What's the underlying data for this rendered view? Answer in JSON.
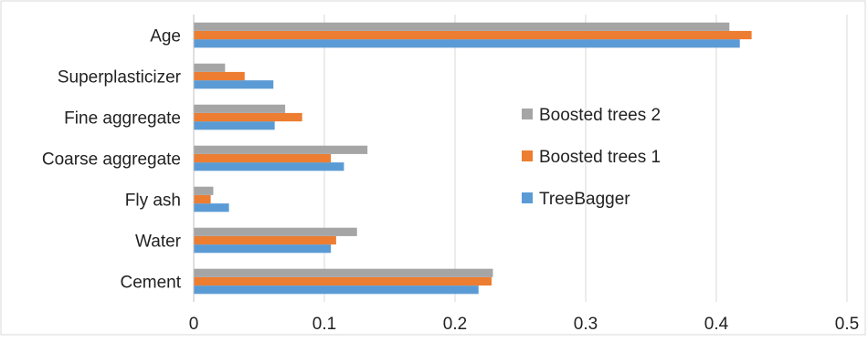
{
  "chart_data": {
    "type": "bar",
    "orientation": "horizontal",
    "categories": [
      "Cement",
      "Water",
      "Fly ash",
      "Coarse aggregate",
      "Fine aggregate",
      "Superplasticizer",
      "Age"
    ],
    "series": [
      {
        "name": "TreeBagger",
        "color": "#5b9bd5",
        "values": [
          0.218,
          0.105,
          0.027,
          0.115,
          0.062,
          0.061,
          0.418
        ]
      },
      {
        "name": "Boosted trees 1",
        "color": "#ed7d31",
        "values": [
          0.228,
          0.109,
          0.013,
          0.105,
          0.083,
          0.039,
          0.427
        ]
      },
      {
        "name": "Boosted trees 2",
        "color": "#a5a5a5",
        "values": [
          0.229,
          0.125,
          0.015,
          0.133,
          0.07,
          0.024,
          0.41
        ]
      }
    ],
    "xlim": [
      0,
      0.5
    ],
    "xticks": [
      "0",
      "0.1",
      "0.2",
      "0.3",
      "0.4",
      "0.5"
    ],
    "grid": true,
    "legend_position": "right",
    "legend_order": [
      "Boosted trees 2",
      "Boosted trees 1",
      "TreeBagger"
    ]
  }
}
